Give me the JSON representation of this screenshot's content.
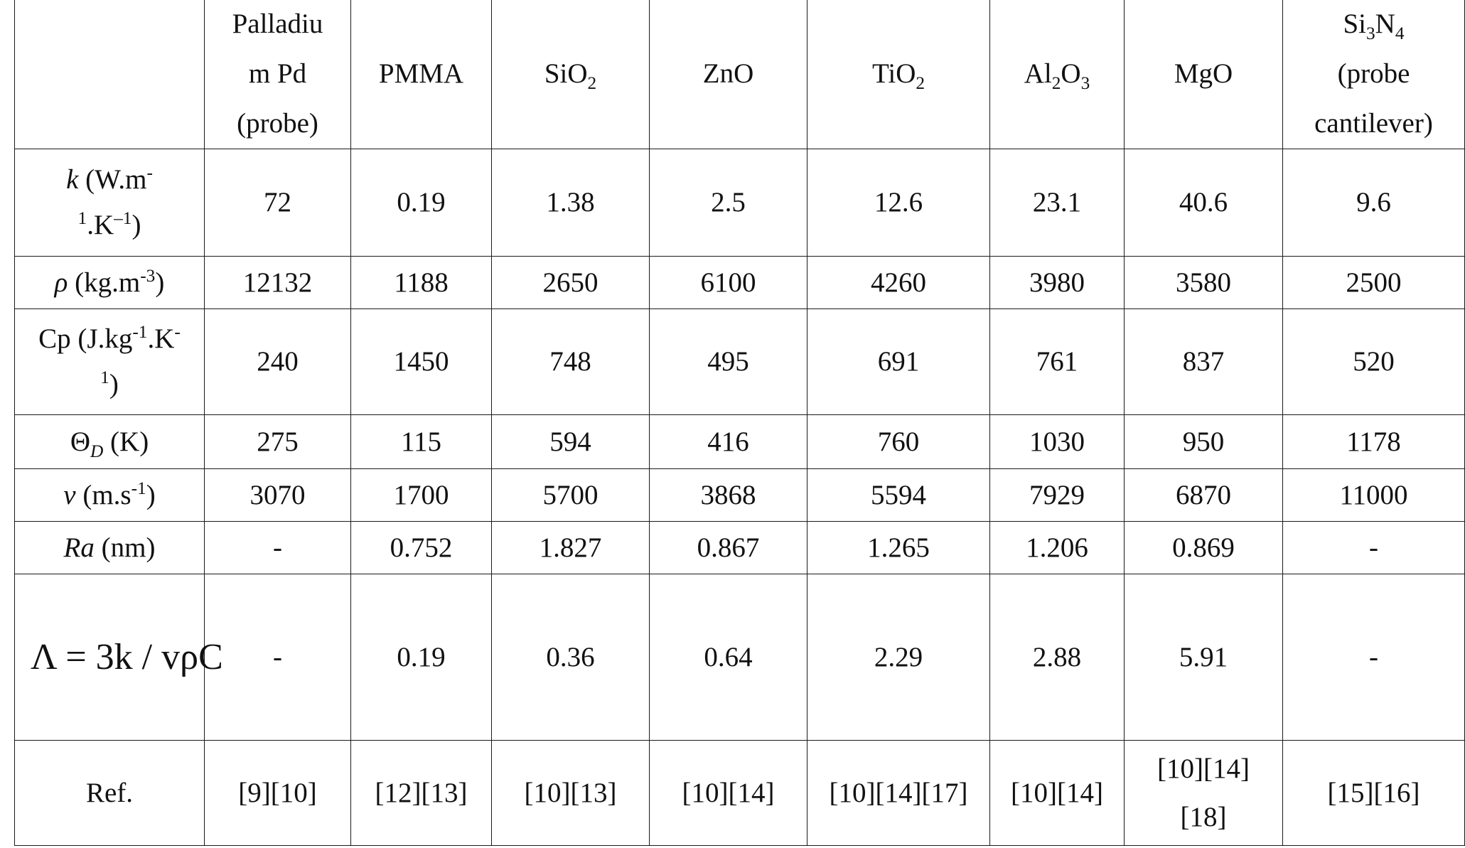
{
  "table": {
    "columns": [
      {
        "line1": "Palladiu",
        "line2": "m Pd",
        "line3": "(probe)"
      },
      {
        "name": "PMMA"
      },
      {
        "base": "SiO",
        "sub": "2"
      },
      {
        "name": "ZnO"
      },
      {
        "base": "TiO",
        "sub": "2"
      },
      {
        "a": "Al",
        "a_sub": "2",
        "b": "O",
        "b_sub": "3"
      },
      {
        "name": "MgO"
      },
      {
        "a": "Si",
        "a_sub": "3",
        "b": "N",
        "b_sub": "4",
        "line2": "(probe",
        "line3": "cantilever)"
      }
    ],
    "row_labels": {
      "k": {
        "sym": "k",
        "unit1": " (W.m",
        "sup1": "-",
        "sup2": "1",
        "unit2": ".K",
        "sup3": "–1",
        "unit3": ")"
      },
      "rho": {
        "sym": "ρ",
        "unit1": " (kg.m",
        "sup1": "-3",
        "unit2": ")"
      },
      "cp": {
        "unit1": "Cp (J.kg",
        "sup1": "-1",
        "unit2": ".K",
        "sup2": "-",
        "sup3": "1",
        "unit3": ")"
      },
      "theta": {
        "sym": "Θ",
        "sub": "D",
        "unit": " (K)"
      },
      "v": {
        "sym": "v",
        "unit1": " (m.s",
        "sup1": "-1",
        "unit2": ")"
      },
      "ra": {
        "sym": "Ra",
        "unit": " (nm)"
      },
      "lambda": {
        "text": "Λ = 3k / vρC"
      },
      "ref": {
        "text": "Ref."
      }
    },
    "rows": {
      "k": [
        "72",
        "0.19",
        "1.38",
        "2.5",
        "12.6",
        "23.1",
        "40.6",
        "9.6"
      ],
      "rho": [
        "12132",
        "1188",
        "2650",
        "6100",
        "4260",
        "3980",
        "3580",
        "2500"
      ],
      "cp": [
        "240",
        "1450",
        "748",
        "495",
        "691",
        "761",
        "837",
        "520"
      ],
      "theta": [
        "275",
        "115",
        "594",
        "416",
        "760",
        "1030",
        "950",
        "1178"
      ],
      "v": [
        "3070",
        "1700",
        "5700",
        "3868",
        "5594",
        "7929",
        "6870",
        "11000"
      ],
      "ra": [
        "-",
        "0.752",
        "1.827",
        "0.867",
        "1.265",
        "1.206",
        "0.869",
        "-"
      ],
      "lambda": [
        "-",
        "0.19",
        "0.36",
        "0.64",
        "2.29",
        "2.88",
        "5.91",
        "-"
      ],
      "ref": [
        "[9][10]",
        "[12][13]",
        "[10][13]",
        "[10][14]",
        "[10][14][17]",
        "[10][14]",
        "[10][14]",
        "[15][16]"
      ],
      "ref_mgo_line2": "[18]"
    }
  }
}
